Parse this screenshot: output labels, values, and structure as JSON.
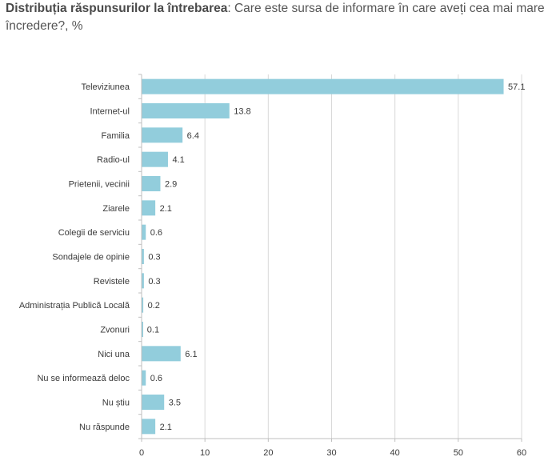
{
  "title_bold": "Distribuția răspunsurilor la întrebarea",
  "title_rest": ": Care este sursa de informare în care aveți cea mai mare încredere?, %",
  "chart_data": {
    "type": "bar",
    "orientation": "horizontal",
    "categories": [
      "Televiziunea",
      "Internet-ul",
      "Familia",
      "Radio-ul",
      "Prietenii, vecinii",
      "Ziarele",
      "Colegii de serviciu",
      "Sondajele de opinie",
      "Revistele",
      "Administrația Publică Locală",
      "Zvonuri",
      "Nici una",
      "Nu se informează deloc",
      "Nu știu",
      "Nu răspunde"
    ],
    "values": [
      57.1,
      13.8,
      6.4,
      4.1,
      2.9,
      2.1,
      0.6,
      0.3,
      0.3,
      0.2,
      0.1,
      6.1,
      0.6,
      3.5,
      2.1
    ],
    "value_labels": [
      "57.1",
      "13.8",
      "6.4",
      "4.1",
      "2.9",
      "2.1",
      "0.6",
      "0.3",
      "0.3",
      "0.2",
      "0.1",
      "6.1",
      "0.6",
      "3.5",
      "2.1"
    ],
    "xlim": [
      0,
      60
    ],
    "xticks": [
      0,
      10,
      20,
      30,
      40,
      50,
      60
    ],
    "grid": "vertical",
    "bar_color": "#92cddc",
    "grid_color": "#d9d9d9",
    "axis_color": "#bfbfbf"
  }
}
